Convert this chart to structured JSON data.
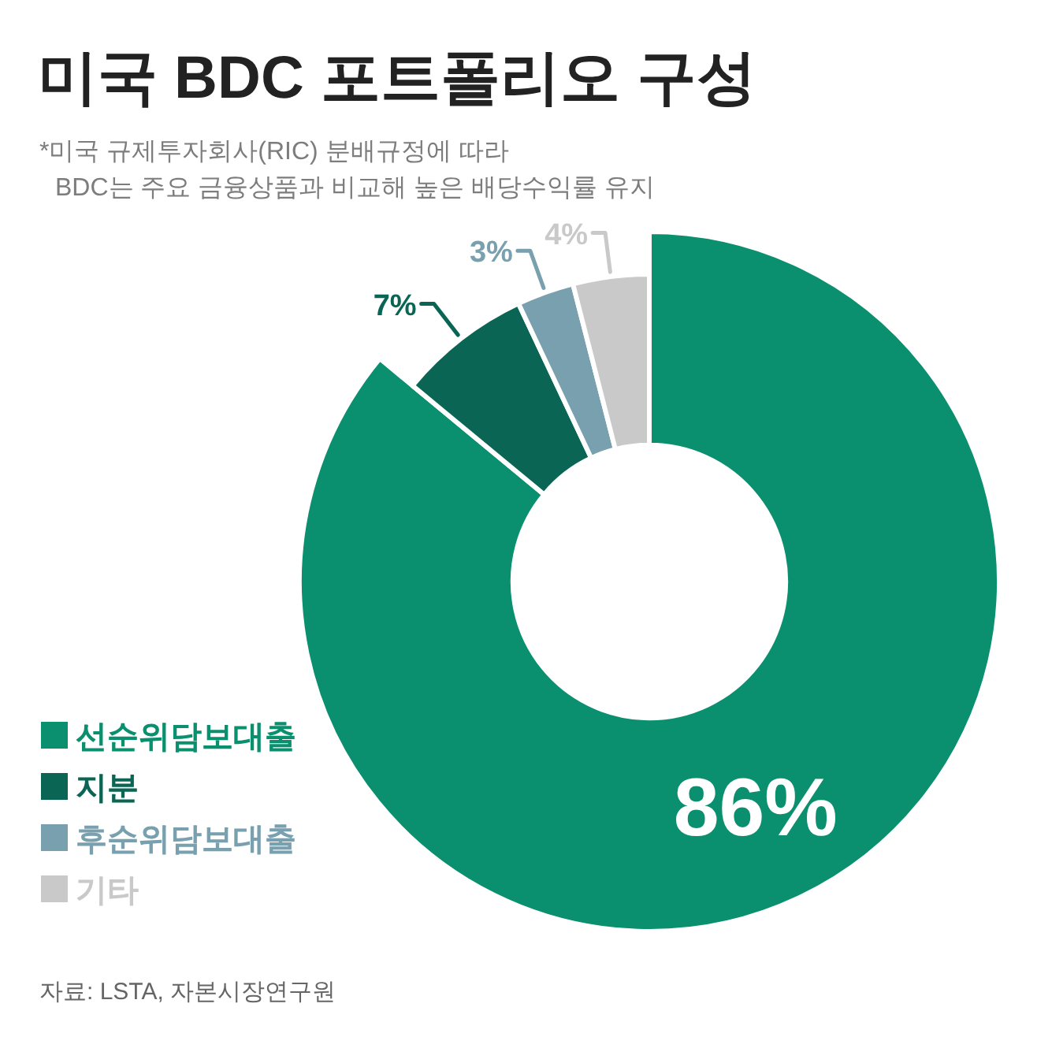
{
  "chart_data": {
    "type": "donut",
    "title": "미국 BDC 포트폴리오 구성",
    "subtitle": "*미국 규제투자회사(RIC) 분배규정에 따라\nBDC는 주요 금융상품과 비교해 높은 배당수익률 유지",
    "categories": [
      "선순위담보대출",
      "지분",
      "후순위담보대출",
      "기타"
    ],
    "values": [
      86,
      7,
      3,
      4
    ],
    "value_labels": [
      "86%",
      "7%",
      "3%",
      "4%"
    ],
    "colors": [
      "#0a8f6f",
      "#0b6555",
      "#79a0ae",
      "#c9c9c9"
    ],
    "legend": "bottom left",
    "annotations": [
      "자료: LSTA, 자본시장연구원"
    ]
  }
}
